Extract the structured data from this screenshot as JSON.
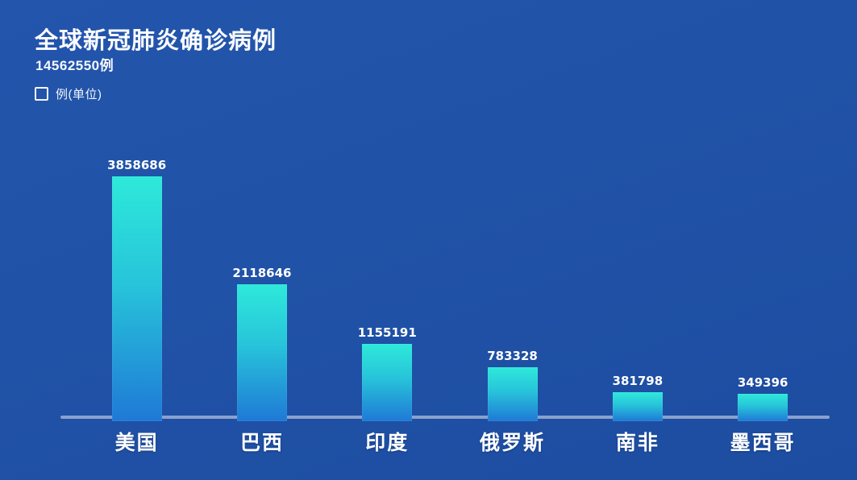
{
  "header": {
    "title": "全球新冠肺炎确诊病例",
    "total": "14562550例"
  },
  "legend": {
    "label": "例(单位)"
  },
  "chart_data": {
    "type": "bar",
    "title": "全球新冠肺炎确诊病例",
    "subtitle_total": "14562550例",
    "categories": [
      "美国",
      "巴西",
      "印度",
      "俄罗斯",
      "南非",
      "墨西哥"
    ],
    "values": [
      3858686,
      2118646,
      1155191,
      783328,
      381798,
      349396
    ],
    "unit": "例",
    "legend_entries": [
      "例(单位)"
    ],
    "legend_position": "top-left",
    "grid": false,
    "ylim": [
      0,
      3858686
    ],
    "value_labels_shown": true,
    "colors": {
      "background_top": "#2355ac",
      "background_bottom": "#1d4da1",
      "bar_gradient_top": "#2ee9da",
      "bar_gradient_bottom": "#1f79d6",
      "axis_line": "#8fa6d0",
      "text": "#ffffff"
    }
  }
}
